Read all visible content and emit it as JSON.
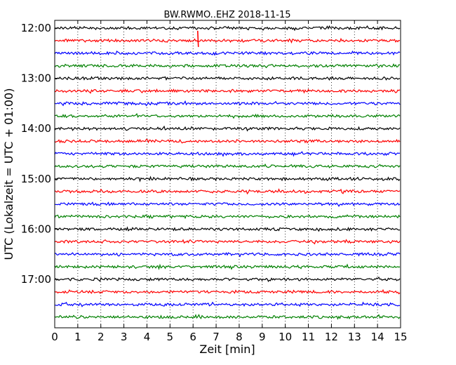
{
  "chart_data": {
    "type": "line",
    "title": "BW.RWMO..EHZ 2018-11-15",
    "xlabel": "Zeit  [min]",
    "ylabel": "UTC (Lokalzeit = UTC + 01:00)",
    "xlim": [
      0,
      15
    ],
    "x_ticks": [
      "0",
      "1",
      "2",
      "3",
      "4",
      "5",
      "6",
      "7",
      "8",
      "9",
      "10",
      "11",
      "12",
      "13",
      "14",
      "15"
    ],
    "y_tick_labels": [
      "12:00",
      "13:00",
      "14:00",
      "15:00",
      "16:00",
      "17:00"
    ],
    "grid": "x-dotted",
    "trace_interval_min": 15,
    "series": [
      {
        "start": "12:00",
        "color": "#000000"
      },
      {
        "start": "12:15",
        "color": "#ff0000",
        "event_min": 6.2
      },
      {
        "start": "12:30",
        "color": "#0000ff"
      },
      {
        "start": "12:45",
        "color": "#008000"
      },
      {
        "start": "13:00",
        "color": "#000000"
      },
      {
        "start": "13:15",
        "color": "#ff0000"
      },
      {
        "start": "13:30",
        "color": "#0000ff"
      },
      {
        "start": "13:45",
        "color": "#008000"
      },
      {
        "start": "14:00",
        "color": "#000000"
      },
      {
        "start": "14:15",
        "color": "#ff0000"
      },
      {
        "start": "14:30",
        "color": "#0000ff"
      },
      {
        "start": "14:45",
        "color": "#008000"
      },
      {
        "start": "15:00",
        "color": "#000000"
      },
      {
        "start": "15:15",
        "color": "#ff0000"
      },
      {
        "start": "15:30",
        "color": "#0000ff"
      },
      {
        "start": "15:45",
        "color": "#008000"
      },
      {
        "start": "16:00",
        "color": "#000000"
      },
      {
        "start": "16:15",
        "color": "#ff0000"
      },
      {
        "start": "16:30",
        "color": "#0000ff"
      },
      {
        "start": "16:45",
        "color": "#008000"
      },
      {
        "start": "17:00",
        "color": "#000000"
      },
      {
        "start": "17:15",
        "color": "#ff0000"
      },
      {
        "start": "17:30",
        "color": "#0000ff"
      },
      {
        "start": "17:45",
        "color": "#008000"
      }
    ]
  }
}
